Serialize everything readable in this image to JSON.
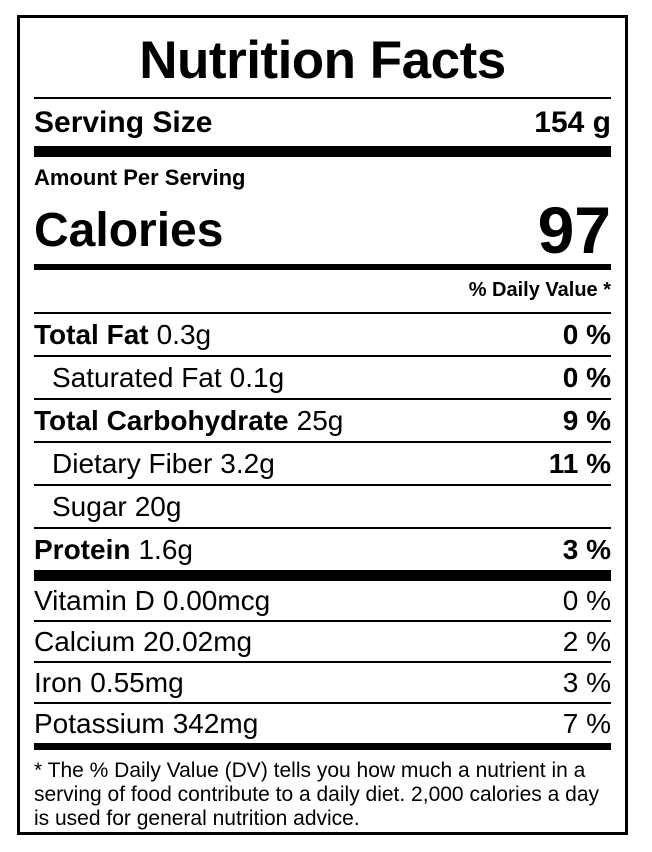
{
  "label": {
    "title": "Nutrition Facts",
    "serving": {
      "label": "Serving Size",
      "value": "154 g"
    },
    "amount_per_serving": "Amount Per Serving",
    "calories": {
      "label": "Calories",
      "value": "97"
    },
    "daily_value_header": "% Daily Value *",
    "nutrients": [
      {
        "name": "Total Fat",
        "amount": "0.3g",
        "dv": "0 %",
        "bold": true,
        "indent": false
      },
      {
        "name": "Saturated Fat",
        "amount": "0.1g",
        "dv": "0 %",
        "bold": false,
        "indent": true
      },
      {
        "name": "Total Carbohydrate",
        "amount": "25g",
        "dv": "9 %",
        "bold": true,
        "indent": false
      },
      {
        "name": "Dietary Fiber",
        "amount": "3.2g",
        "dv": "11 %",
        "bold": false,
        "indent": true
      },
      {
        "name": "Sugar",
        "amount": "20g",
        "dv": "",
        "bold": false,
        "indent": true
      },
      {
        "name": "Protein",
        "amount": "1.6g",
        "dv": "3 %",
        "bold": true,
        "indent": false
      }
    ],
    "micronutrients": [
      {
        "name": "Vitamin D",
        "amount": "0.00mcg",
        "dv": "0 %"
      },
      {
        "name": "Calcium",
        "amount": "20.02mg",
        "dv": "2 %"
      },
      {
        "name": "Iron",
        "amount": "0.55mg",
        "dv": "3 %"
      },
      {
        "name": "Potassium",
        "amount": "342mg",
        "dv": "7 %"
      }
    ],
    "footnote": "* The % Daily Value (DV) tells you how much a nutrient in a serving of food contribute to a daily diet. 2,000 calories a day is used for general nutrition advice.",
    "colors": {
      "text": "#000000",
      "background": "#ffffff",
      "border": "#000000"
    }
  }
}
